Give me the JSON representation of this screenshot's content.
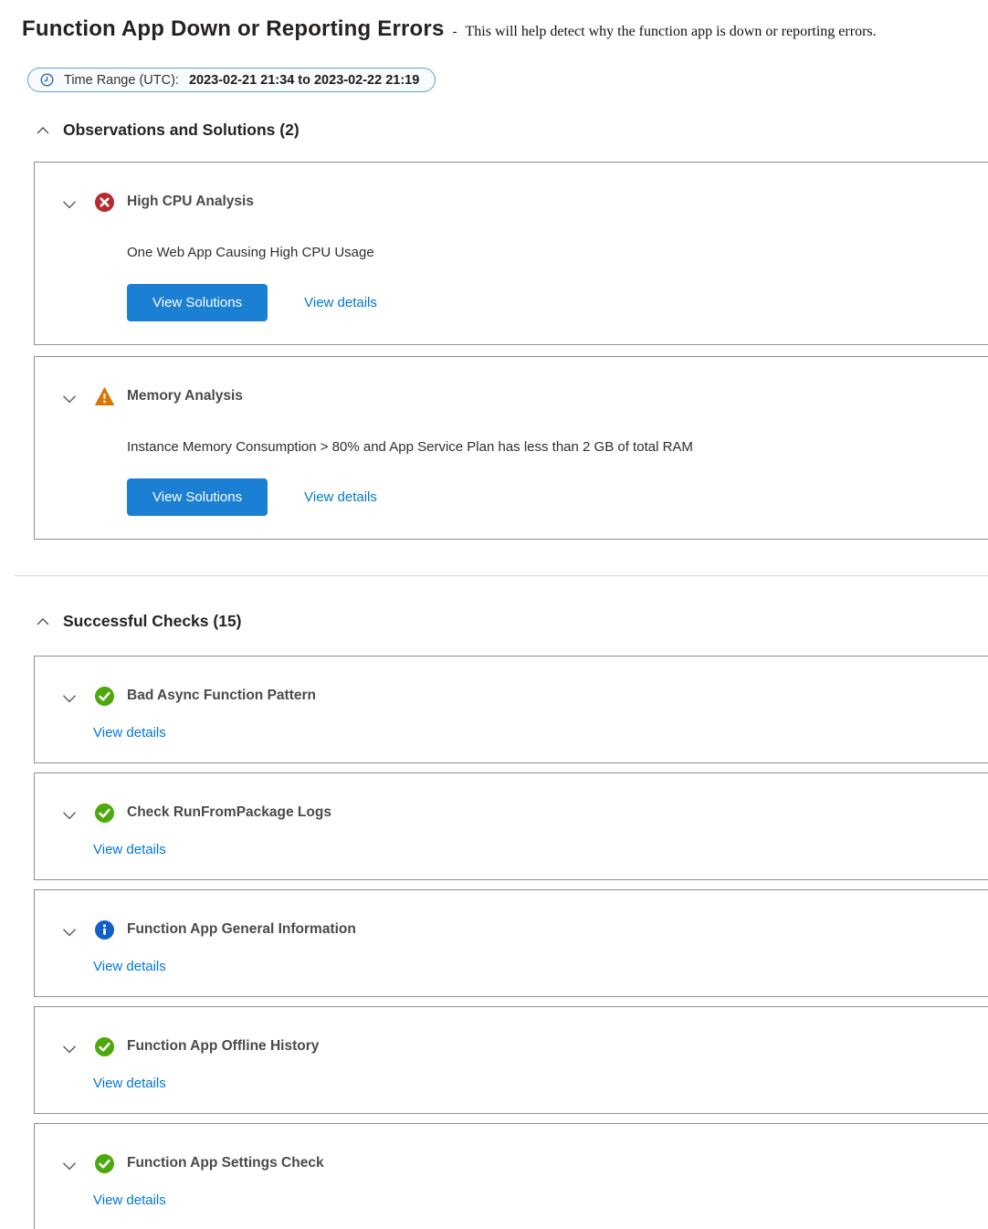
{
  "header": {
    "title": "Function App Down or Reporting Errors",
    "separator": "-",
    "subtitle": "This will help detect why the function app is down or reporting errors."
  },
  "time_range": {
    "icon": "clock-icon",
    "label": "Time Range (UTC):",
    "value": "2023-02-21 21:34 to 2023-02-22 21:19"
  },
  "sections": [
    {
      "title": "Observations and Solutions (2)",
      "collapse_icon": "chevron-up-icon",
      "cards": [
        {
          "status": "error",
          "icon": "error-icon",
          "title": "High CPU Analysis",
          "description": "One Web App Causing High CPU Usage",
          "primary_button": "View Solutions",
          "link": "View details"
        },
        {
          "status": "warning",
          "icon": "warning-icon",
          "title": "Memory Analysis",
          "description": "Instance Memory Consumption > 80% and App Service Plan has less than 2 GB of total RAM",
          "primary_button": "View Solutions",
          "link": "View details"
        }
      ]
    },
    {
      "title": "Successful Checks (15)",
      "collapse_icon": "chevron-up-icon",
      "cards": [
        {
          "status": "success",
          "icon": "success-icon",
          "title": "Bad Async Function Pattern",
          "link": "View details"
        },
        {
          "status": "success",
          "icon": "success-icon",
          "title": "Check RunFromPackage Logs",
          "link": "View details"
        },
        {
          "status": "info",
          "icon": "info-icon",
          "title": "Function App General Information",
          "link": "View details"
        },
        {
          "status": "success",
          "icon": "success-icon",
          "title": "Function App Offline History",
          "link": "View details"
        },
        {
          "status": "success",
          "icon": "success-icon",
          "title": "Function App Settings Check",
          "link": "View details"
        }
      ]
    }
  ],
  "colors": {
    "accent_blue": "#0078d4",
    "button_blue": "#1b7fd4",
    "error_red": "#b52b30",
    "warning_orange": "#de7300",
    "success_green": "#4ca90c",
    "info_blue": "#1160c7",
    "pill_border_blue": "#5c9fd8",
    "card_border_gray": "#8f8f8f"
  }
}
